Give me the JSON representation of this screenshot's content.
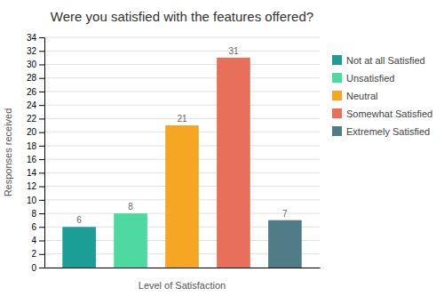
{
  "chart_data": {
    "type": "bar",
    "title": "Were you satisfied with the features offered?",
    "xlabel": "Level of Satisfaction",
    "ylabel": "Responses received",
    "categories": [
      "Not at all Satisfied",
      "Unsatisfied",
      "Neutral",
      "Somewhat Satisfied",
      "Extremely Satisfied"
    ],
    "values": [
      6,
      8,
      21,
      31,
      7
    ],
    "colors": [
      "#1a9e96",
      "#4dd9a0",
      "#f5a623",
      "#e8705a",
      "#507c87"
    ],
    "ylim": [
      0,
      34
    ],
    "yticks": [
      0,
      2,
      4,
      6,
      8,
      10,
      12,
      14,
      16,
      18,
      20,
      22,
      24,
      26,
      28,
      30,
      32,
      34
    ],
    "grid": true,
    "data_labels": true,
    "legend": "right",
    "tick_labels": "y"
  }
}
